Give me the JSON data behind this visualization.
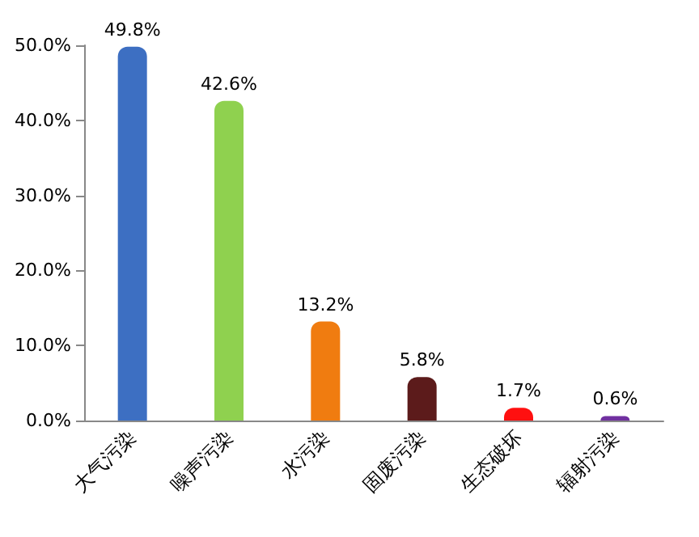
{
  "chart_data": {
    "type": "bar",
    "categories": [
      "大气污染",
      "噪声污染",
      "水污染",
      "固废污染",
      "生态破坏",
      "辐射污染"
    ],
    "values": [
      49.8,
      42.6,
      13.2,
      5.8,
      1.7,
      0.6
    ],
    "colors": [
      "#3d6fc2",
      "#8fd14f",
      "#f07c10",
      "#5c1b1b",
      "#ff1010",
      "#7030a0"
    ],
    "value_labels": [
      "49.8%",
      "42.6%",
      "13.2%",
      "5.8%",
      "1.7%",
      "0.6%"
    ],
    "ylim": [
      0,
      50
    ],
    "yticks": [
      {
        "value": 0,
        "label": "0.0%"
      },
      {
        "value": 10,
        "label": "10.0%"
      },
      {
        "value": 20,
        "label": "20.0%"
      },
      {
        "value": 30,
        "label": "30.0%"
      },
      {
        "value": 40,
        "label": "40.0%"
      },
      {
        "value": 50,
        "label": "50.0%"
      }
    ],
    "grid": false
  }
}
